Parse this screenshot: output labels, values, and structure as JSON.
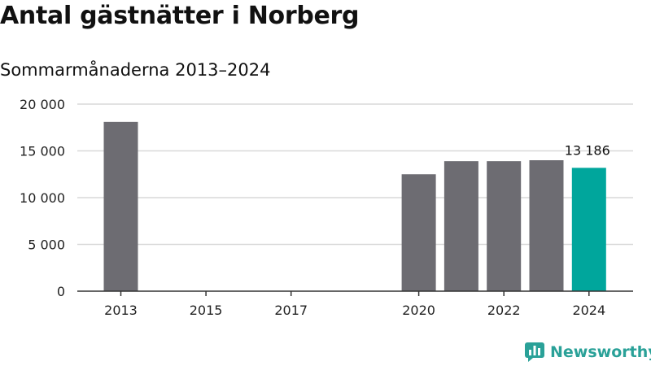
{
  "title": "Antal gästnätter i Norberg",
  "subtitle": "Sommarmånaderna 2013–2024",
  "logo": {
    "text": "Newsworthy",
    "icon": "bar-chart-speech-bubble-icon"
  },
  "colors": {
    "bar": "#6d6c72",
    "highlight": "#00a69c",
    "grid": "#d9d9d9",
    "axis": "#333333",
    "brand": "#2aa198"
  },
  "chart_data": {
    "type": "bar",
    "x": [
      2013,
      2014,
      2015,
      2016,
      2017,
      2018,
      2019,
      2020,
      2021,
      2022,
      2023,
      2024
    ],
    "values": [
      18100,
      null,
      null,
      null,
      null,
      null,
      null,
      12500,
      13900,
      13900,
      14000,
      13186
    ],
    "xticks": [
      2013,
      2015,
      2017,
      2020,
      2022,
      2024
    ],
    "xtick_labels": [
      "2013",
      "2015",
      "2017",
      "2020",
      "2022",
      "2024"
    ],
    "yticks": [
      0,
      5000,
      10000,
      15000,
      20000
    ],
    "ytick_labels": [
      "0",
      "5 000",
      "10 000",
      "15 000",
      "20 000"
    ],
    "ylim": [
      0,
      20000
    ],
    "highlight": {
      "x": 2024,
      "label": "13 186"
    },
    "xlabel": "",
    "ylabel": "",
    "grid": true,
    "legend": "none"
  }
}
